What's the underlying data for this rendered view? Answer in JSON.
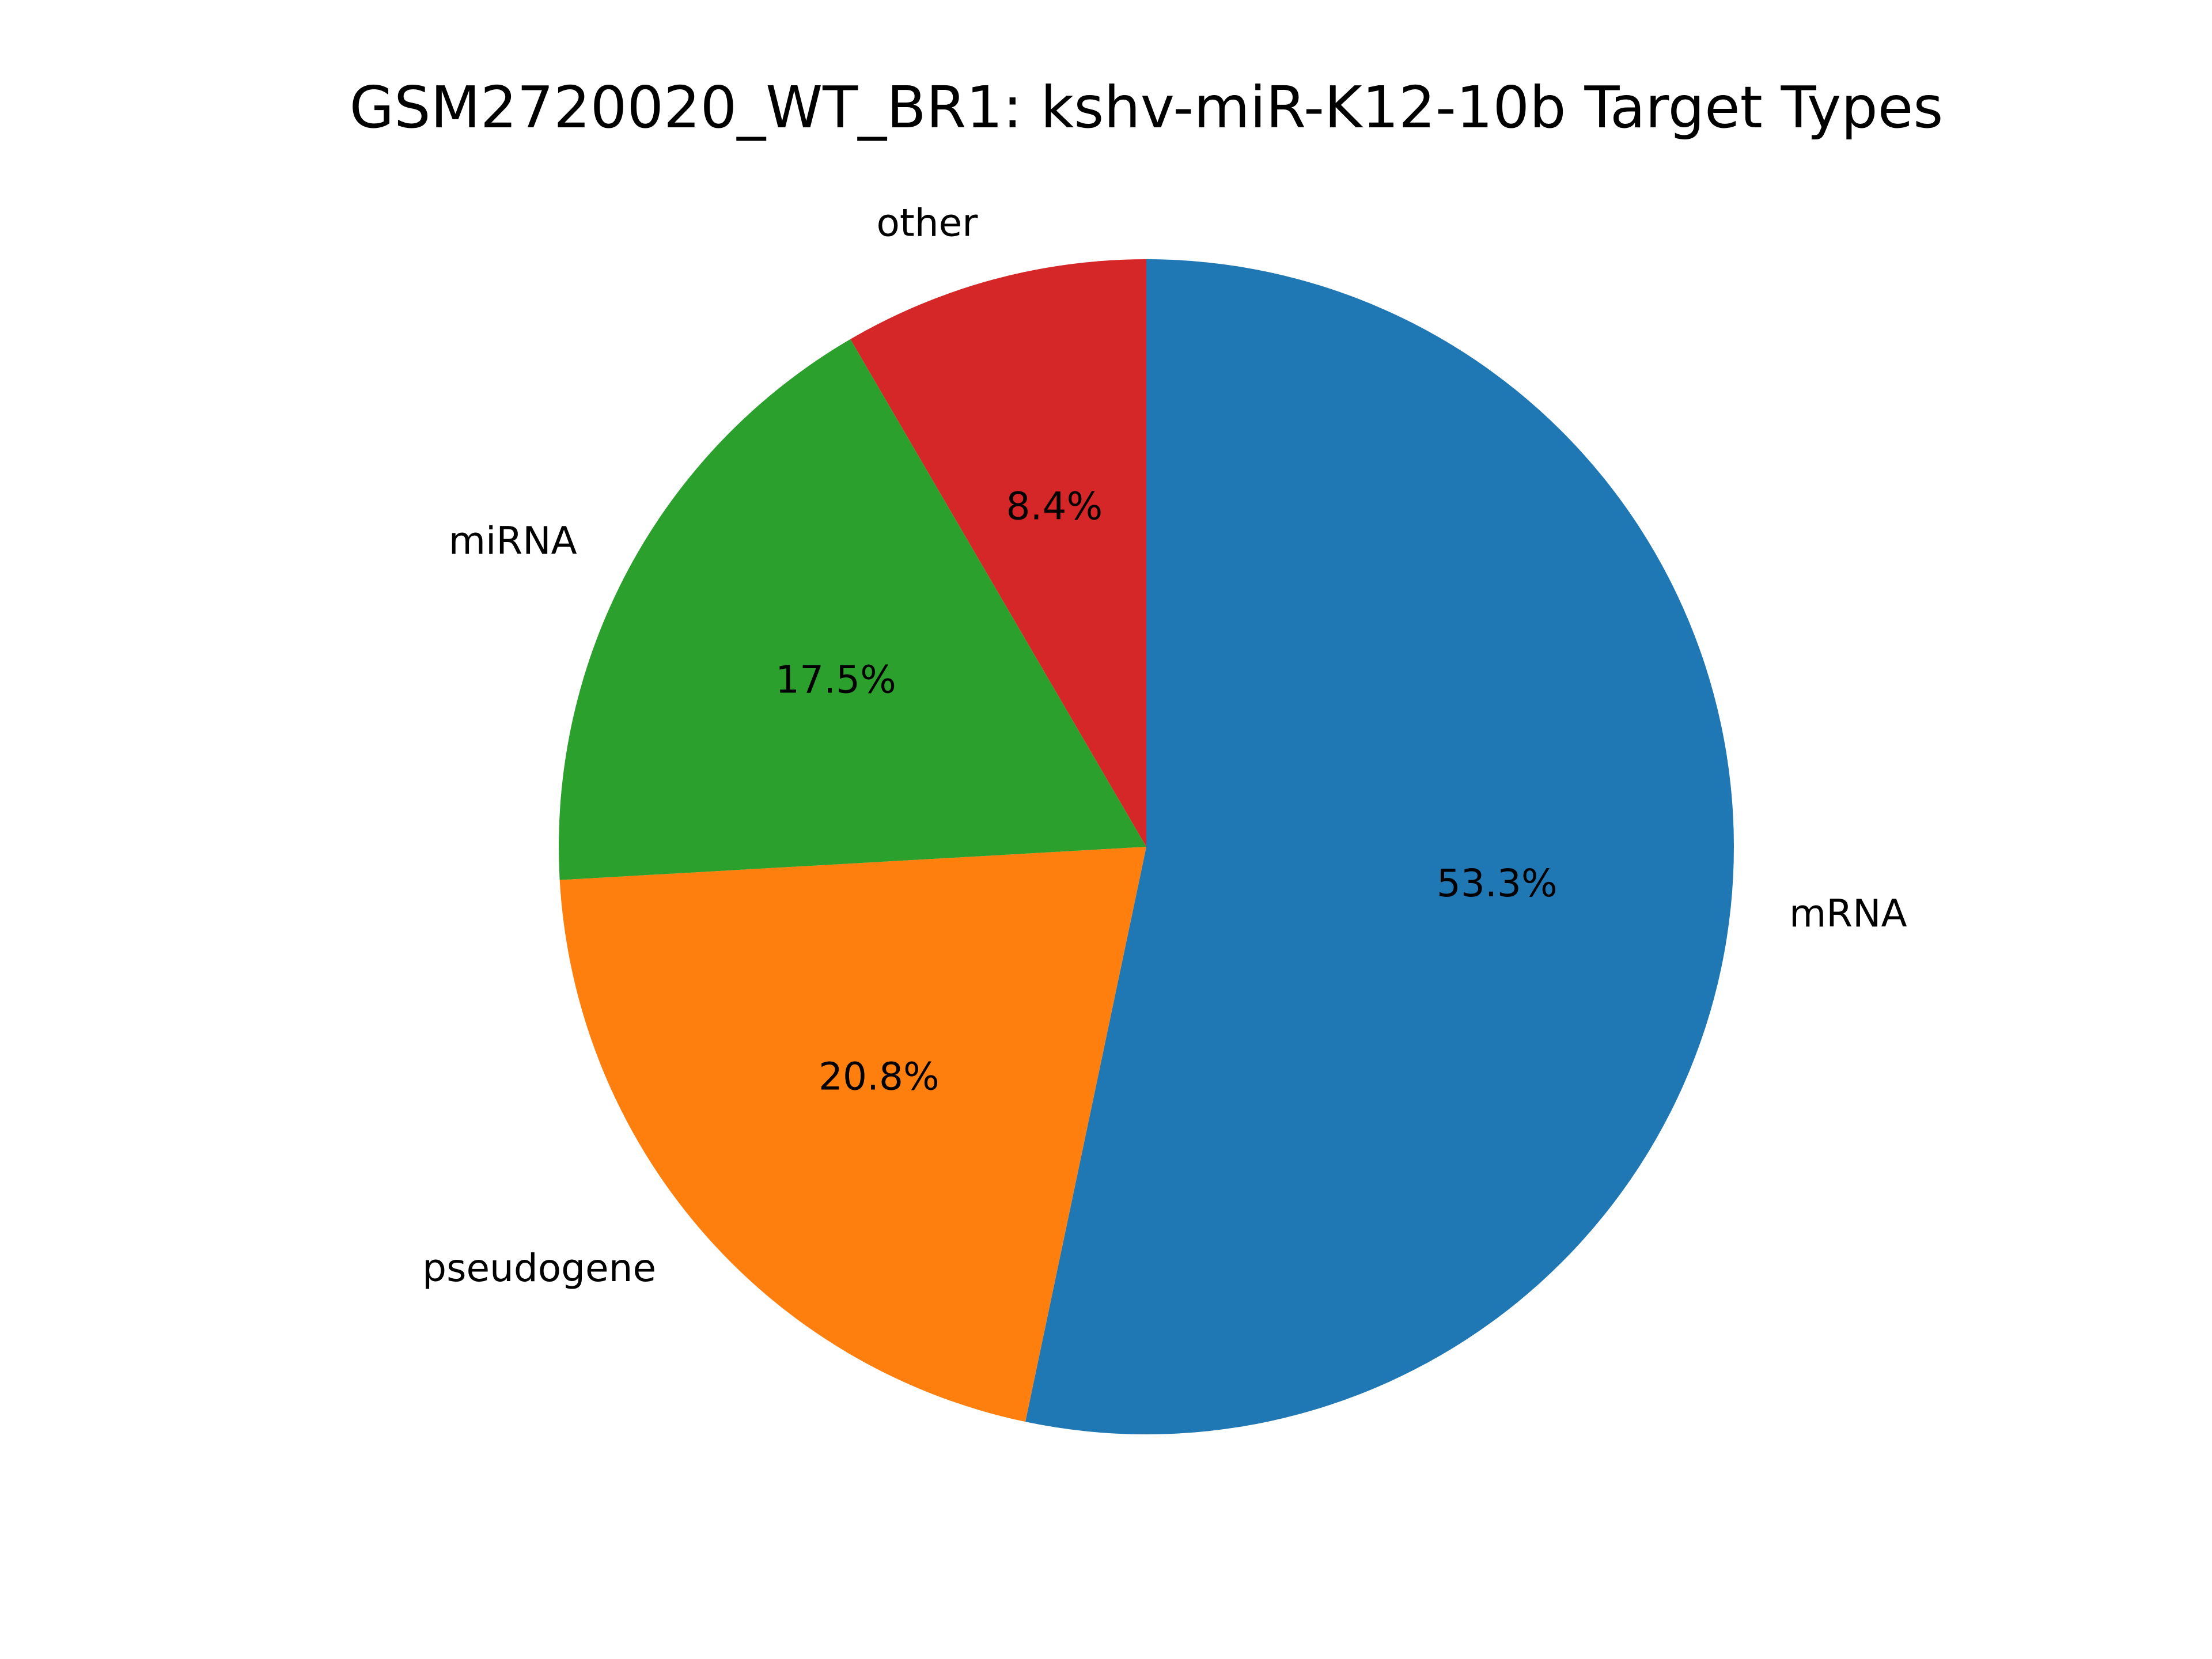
{
  "chart_data": {
    "type": "pie",
    "title": "GSM2720020_WT_BR1: kshv-miR-K12-10b Target Types",
    "start_angle_deg": 90,
    "direction": "clockwise",
    "slices": [
      {
        "label": "mRNA",
        "value": 53.3,
        "pct_label": "53.3%",
        "color": "#1f77b4"
      },
      {
        "label": "pseudogene",
        "value": 20.8,
        "pct_label": "20.8%",
        "color": "#ff7f0e"
      },
      {
        "label": "miRNA",
        "value": 17.5,
        "pct_label": "17.5%",
        "color": "#2ca02c"
      },
      {
        "label": "other",
        "value": 8.4,
        "pct_label": "8.4%",
        "color": "#d62728"
      }
    ]
  }
}
